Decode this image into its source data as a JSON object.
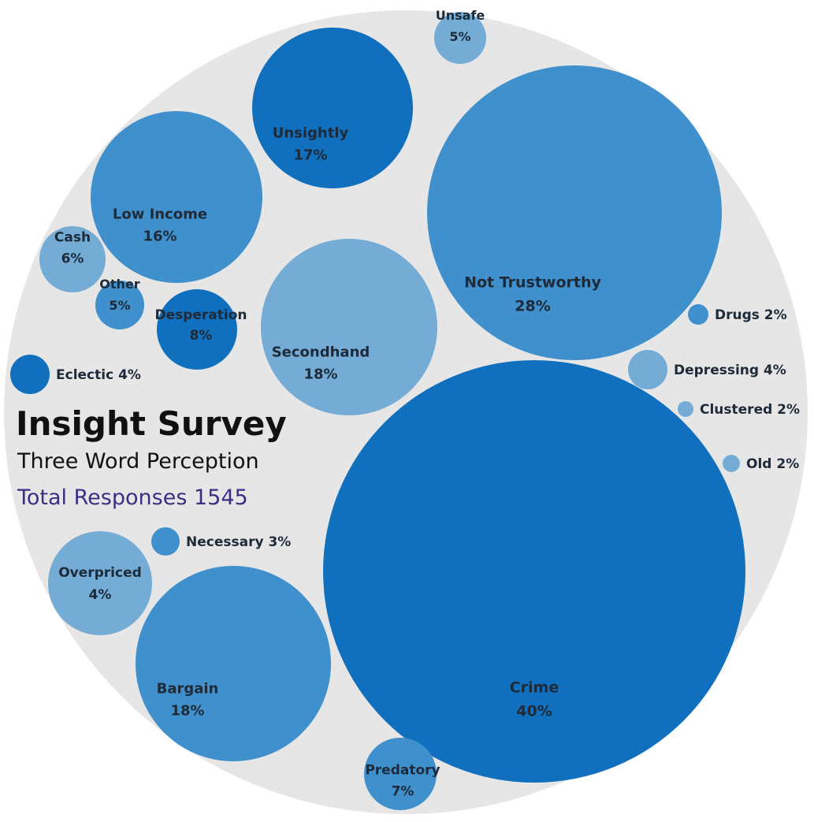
{
  "chart_data": {
    "type": "bubble",
    "title": "Insight Survey",
    "subtitle": "Three Word Perception",
    "total_label": "Total Responses 1545",
    "colors": {
      "background_circle": "#e6e6e6",
      "dark": "#1170bd",
      "medium": "#3f90cc",
      "light": "#74acd6",
      "title": "#111111",
      "total": "#3b2f83"
    },
    "bubbles": [
      {
        "name": "Crime",
        "value": "40%",
        "shade": "dark"
      },
      {
        "name": "Not Trustworthy",
        "value": "28%",
        "shade": "medium"
      },
      {
        "name": "Secondhand",
        "value": "18%",
        "shade": "light"
      },
      {
        "name": "Bargain",
        "value": "18%",
        "shade": "medium"
      },
      {
        "name": "Unsightly",
        "value": "17%",
        "shade": "dark"
      },
      {
        "name": "Low Income",
        "value": "16%",
        "shade": "medium"
      },
      {
        "name": "Desperation",
        "value": "8%",
        "shade": "dark"
      },
      {
        "name": "Predatory",
        "value": "7%",
        "shade": "medium"
      },
      {
        "name": "Cash",
        "value": "6%",
        "shade": "light"
      },
      {
        "name": "Unsafe",
        "value": "5%",
        "shade": "light"
      },
      {
        "name": "Other",
        "value": "5%",
        "shade": "medium"
      },
      {
        "name": "Overpriced",
        "value": "4%",
        "shade": "light"
      },
      {
        "name": "Eclectic",
        "value": "4%",
        "shade": "dark"
      },
      {
        "name": "Depressing",
        "value": "4%",
        "shade": "light"
      },
      {
        "name": "Necessary",
        "value": "3%",
        "shade": "medium"
      },
      {
        "name": "Drugs",
        "value": "2%",
        "shade": "medium"
      },
      {
        "name": "Clustered",
        "value": "2%",
        "shade": "light"
      },
      {
        "name": "Old",
        "value": "2%",
        "shade": "light"
      }
    ]
  }
}
